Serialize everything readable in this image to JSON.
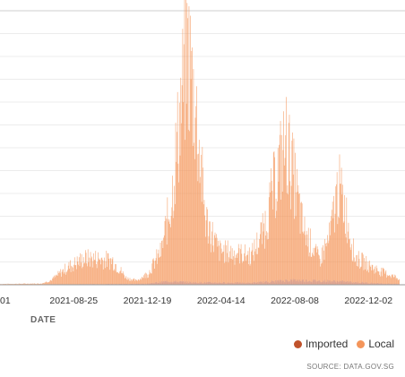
{
  "chart_data": {
    "type": "bar",
    "stacked": true,
    "xlabel": "DATE",
    "x_ticks": [
      "01",
      "2021-08-25",
      "2021-12-19",
      "2022-04-14",
      "2022-08-08",
      "2022-12-02"
    ],
    "x_range": [
      "2021-05-01",
      "2023-01-20"
    ],
    "ylim": [
      0,
      12000
    ],
    "grid": true,
    "legend_position": "bottom-right",
    "series": [
      {
        "name": "Imported",
        "color": "#c0522b",
        "profile": [
          [
            "2021-05-01",
            5
          ],
          [
            "2021-08-01",
            20
          ],
          [
            "2021-12-15",
            40
          ],
          [
            "2022-01-20",
            150
          ],
          [
            "2022-03-01",
            100
          ],
          [
            "2022-06-01",
            80
          ],
          [
            "2022-08-01",
            200
          ],
          [
            "2022-10-15",
            150
          ],
          [
            "2022-12-15",
            60
          ],
          [
            "2023-01-20",
            30
          ]
        ]
      },
      {
        "name": "Local",
        "color": "#f4955a",
        "profile": [
          [
            "2021-05-01",
            30
          ],
          [
            "2021-07-05",
            40
          ],
          [
            "2021-07-20",
            200
          ],
          [
            "2021-08-15",
            800
          ],
          [
            "2021-09-10",
            1200
          ],
          [
            "2021-10-01",
            1200
          ],
          [
            "2021-10-25",
            1100
          ],
          [
            "2021-11-15",
            300
          ],
          [
            "2021-12-01",
            150
          ],
          [
            "2021-12-20",
            500
          ],
          [
            "2022-01-10",
            1500
          ],
          [
            "2022-01-25",
            3800
          ],
          [
            "2022-02-10",
            8500
          ],
          [
            "2022-02-20",
            11000
          ],
          [
            "2022-03-05",
            8000
          ],
          [
            "2022-03-20",
            3000
          ],
          [
            "2022-04-10",
            1500
          ],
          [
            "2022-05-10",
            1400
          ],
          [
            "2022-06-01",
            1300
          ],
          [
            "2022-06-20",
            2500
          ],
          [
            "2022-07-10",
            5000
          ],
          [
            "2022-07-25",
            6500
          ],
          [
            "2022-08-05",
            5000
          ],
          [
            "2022-08-20",
            2500
          ],
          [
            "2022-09-15",
            1000
          ],
          [
            "2022-10-01",
            2000
          ],
          [
            "2022-10-15",
            4500
          ],
          [
            "2022-10-25",
            3500
          ],
          [
            "2022-11-10",
            1200
          ],
          [
            "2022-12-10",
            700
          ],
          [
            "2023-01-20",
            250
          ]
        ]
      }
    ],
    "source": "SOURCE: DATA.GOV.SG"
  }
}
